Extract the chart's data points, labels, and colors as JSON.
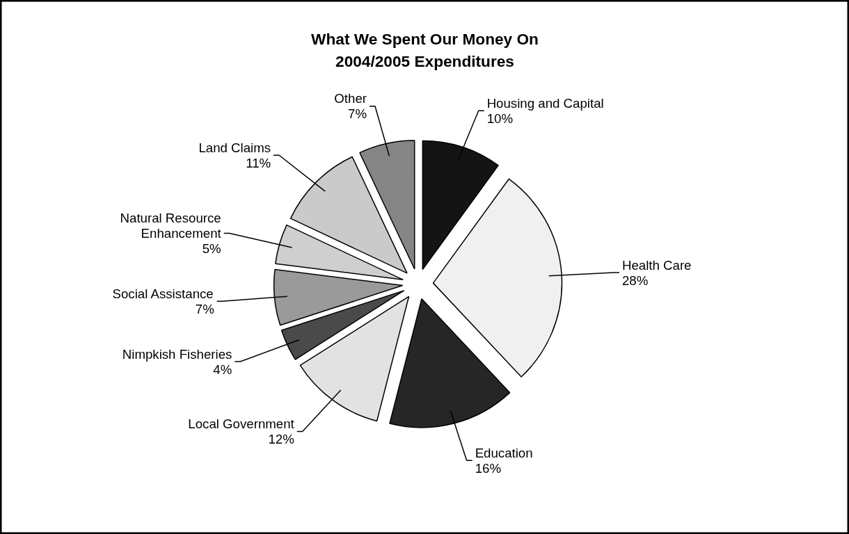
{
  "chart_data": {
    "type": "pie",
    "title": "What We Spent Our Money On\n2004/2005 Expenditures",
    "categories": [
      "Housing and Capital",
      "Health Care",
      "Education",
      "Local Government",
      "Nimpkish Fisheries",
      "Social Assistance",
      "Natural Resource Enhancement",
      "Land Claims",
      "Other"
    ],
    "values": [
      10,
      28,
      16,
      12,
      4,
      7,
      5,
      11,
      7
    ],
    "colors": [
      "#141414",
      "#f0f0f0",
      "#262626",
      "#e2e2e2",
      "#4a4a4a",
      "#9a9a9a",
      "#cfcfcf",
      "#cacaca",
      "#858585"
    ],
    "value_labels": [
      "10%",
      "28%",
      "16%",
      "12%",
      "4%",
      "7%",
      "5%",
      "11%",
      "7%"
    ]
  }
}
